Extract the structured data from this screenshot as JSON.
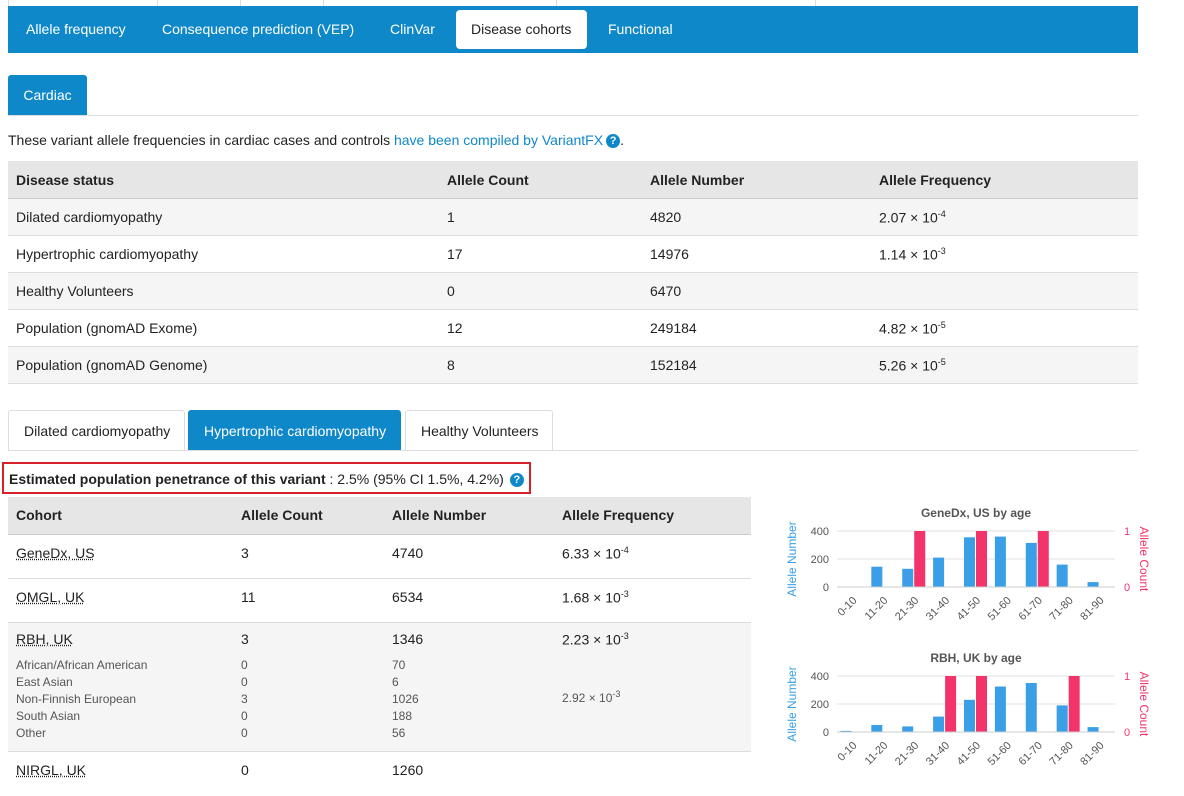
{
  "nav": {
    "tabs": [
      {
        "label": "Allele frequency"
      },
      {
        "label": "Consequence prediction (VEP)"
      },
      {
        "label": "ClinVar"
      },
      {
        "label": "Disease cohorts"
      },
      {
        "label": "Functional"
      }
    ],
    "active": "Disease cohorts"
  },
  "cardiac_tab": "Cardiac",
  "intro": {
    "text": "These variant allele frequencies in cardiac cases and controls ",
    "link": "have been compiled by VariantFX",
    "help_icon": "?",
    "end": "."
  },
  "summary_table": {
    "headers": [
      "Disease status",
      "Allele Count",
      "Allele Number",
      "Allele Frequency"
    ],
    "rows": [
      {
        "status": "Dilated cardiomyopathy",
        "count": "1",
        "number": "4820",
        "freq_base": "2.07 × 10",
        "freq_exp": "-4"
      },
      {
        "status": "Hypertrophic cardiomyopathy",
        "count": "17",
        "number": "14976",
        "freq_base": "1.14 × 10",
        "freq_exp": "-3"
      },
      {
        "status": "Healthy Volunteers",
        "count": "0",
        "number": "6470",
        "freq_base": "",
        "freq_exp": ""
      },
      {
        "status": "Population (gnomAD Exome)",
        "count": "12",
        "number": "249184",
        "freq_base": "4.82 × 10",
        "freq_exp": "-5"
      },
      {
        "status": "Population (gnomAD Genome)",
        "count": "8",
        "number": "152184",
        "freq_base": "5.26 × 10",
        "freq_exp": "-5"
      }
    ]
  },
  "subtabs": [
    {
      "label": "Dilated cardiomyopathy"
    },
    {
      "label": "Hypertrophic cardiomyopathy"
    },
    {
      "label": "Healthy Volunteers"
    }
  ],
  "penetrance": {
    "label": "Estimated population penetrance of this variant",
    "value": " : 2.5% (95% CI 1.5%, 4.2%)",
    "help_icon": "?"
  },
  "cohort_table": {
    "headers": [
      "Cohort",
      "Allele Count",
      "Allele Number",
      "Allele Frequency"
    ],
    "rows": [
      {
        "cohort": "GeneDx, US",
        "count": "3",
        "number": "4740",
        "freq_base": "6.33 × 10",
        "freq_exp": "-4"
      },
      {
        "cohort": "OMGL, UK",
        "count": "11",
        "number": "6534",
        "freq_base": "1.68 × 10",
        "freq_exp": "-3"
      },
      {
        "cohort": "RBH, UK",
        "count": "3",
        "number": "1346",
        "freq_base": "2.23 × 10",
        "freq_exp": "-3"
      },
      {
        "cohort": "NIRGL, UK",
        "count": "0",
        "number": "1260",
        "freq_base": "",
        "freq_exp": ""
      }
    ],
    "rbh_sub": [
      {
        "pop": "African/African American",
        "count": "0",
        "number": "70",
        "freq_base": "",
        "freq_exp": ""
      },
      {
        "pop": "East Asian",
        "count": "0",
        "number": "6",
        "freq_base": "",
        "freq_exp": ""
      },
      {
        "pop": "Non-Finnish European",
        "count": "3",
        "number": "1026",
        "freq_base": "2.92 × 10",
        "freq_exp": "-3"
      },
      {
        "pop": "South Asian",
        "count": "0",
        "number": "188",
        "freq_base": "",
        "freq_exp": ""
      },
      {
        "pop": "Other",
        "count": "0",
        "number": "56",
        "freq_base": "",
        "freq_exp": ""
      }
    ]
  },
  "colors": {
    "primary": "#0f88c9",
    "number_bar": "#3a9fe6",
    "count_bar": "#f2346b",
    "highlight_border": "#d9202a"
  },
  "chart_data": [
    {
      "type": "bar",
      "title": "GeneDx, US by age",
      "categories": [
        "0-10",
        "11-20",
        "21-30",
        "31-40",
        "41-50",
        "51-60",
        "61-70",
        "71-80",
        "81-90"
      ],
      "series": [
        {
          "name": "Allele Number",
          "axis": "left",
          "values": [
            0,
            145,
            130,
            210,
            355,
            360,
            315,
            160,
            35
          ]
        },
        {
          "name": "Allele Count",
          "axis": "right",
          "values": [
            0,
            0,
            1,
            0,
            1,
            0,
            1,
            0,
            0
          ]
        }
      ],
      "ylabel": "Allele Number",
      "ylim": [
        0,
        400
      ],
      "yticks": [
        "0",
        "200",
        "400"
      ],
      "y2label": "Allele Count",
      "y2lim": [
        0,
        1
      ],
      "y2ticks": [
        "0",
        "1"
      ]
    },
    {
      "type": "bar",
      "title": "RBH, UK by age",
      "categories": [
        "0-10",
        "11-20",
        "21-30",
        "31-40",
        "41-50",
        "51-60",
        "61-70",
        "71-80",
        "81-90"
      ],
      "series": [
        {
          "name": "Allele Number",
          "axis": "left",
          "values": [
            8,
            50,
            40,
            110,
            230,
            325,
            350,
            190,
            35
          ]
        },
        {
          "name": "Allele Count",
          "axis": "right",
          "values": [
            0,
            0,
            0,
            1,
            1,
            0,
            0,
            1,
            0
          ]
        }
      ],
      "ylabel": "Allele Number",
      "ylim": [
        0,
        400
      ],
      "yticks": [
        "0",
        "200",
        "400"
      ],
      "y2label": "Allele Count",
      "y2lim": [
        0,
        1
      ],
      "y2ticks": [
        "0",
        "1"
      ]
    }
  ]
}
